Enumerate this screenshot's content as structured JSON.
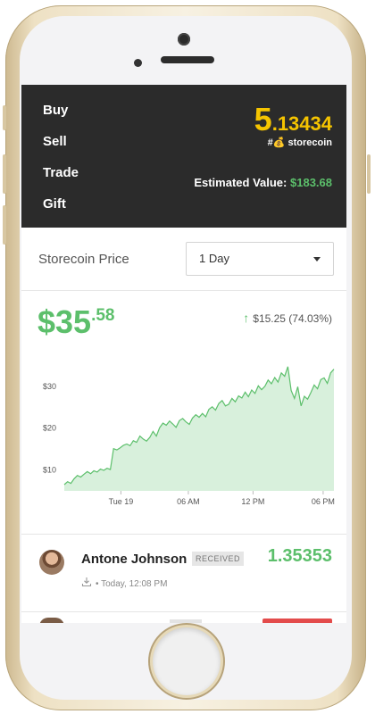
{
  "menu": [
    "Buy",
    "Sell",
    "Trade",
    "Gift"
  ],
  "balance": {
    "integer": "5",
    "decimal": ".13434",
    "label": "#💰 storecoin"
  },
  "estimated": {
    "label": "Estimated Value:",
    "value": "$183.68"
  },
  "price_section": {
    "label": "Storecoin Price",
    "range_selected": "1 Day"
  },
  "price": {
    "integer": "$35",
    "decimal": ".58",
    "change": "$15.25 (74.03%)",
    "change_icon": "arrow-up-icon"
  },
  "colors": {
    "green": "#5cbf6b",
    "gold": "#f5c400",
    "header_bg": "#2b2b2b"
  },
  "chart_data": {
    "type": "area",
    "y_ticks": [
      "$10",
      "$20",
      "$30"
    ],
    "x_ticks": [
      "Tue 19",
      "06 AM",
      "12 PM",
      "06 PM"
    ],
    "ylim": [
      5,
      37
    ],
    "values": [
      6.5,
      7.2,
      6.8,
      7.9,
      8.7,
      8.3,
      9.0,
      9.6,
      9.1,
      9.8,
      9.5,
      10.2,
      9.9,
      10.4,
      10.1,
      15.1,
      14.8,
      15.3,
      15.9,
      16.2,
      15.8,
      17.0,
      16.6,
      18.1,
      17.4,
      16.9,
      17.8,
      19.2,
      18.1,
      20.1,
      21.2,
      20.7,
      21.7,
      21.0,
      20.2,
      21.8,
      22.3,
      21.5,
      20.9,
      22.4,
      23.2,
      22.6,
      23.5,
      22.7,
      24.5,
      25.1,
      24.3,
      25.9,
      26.6,
      25.3,
      25.7,
      27.1,
      26.3,
      27.7,
      27.2,
      28.6,
      27.5,
      29.1,
      28.3,
      30.1,
      29.2,
      30.0,
      31.5,
      30.6,
      32.1,
      31.0,
      33.2,
      32.4,
      34.7,
      29.0,
      27.1,
      29.9,
      25.3,
      27.6,
      26.9,
      28.5,
      30.3,
      29.4,
      31.6,
      32.0,
      30.7,
      33.2,
      34.1
    ]
  },
  "transactions": [
    {
      "name": "Antone Johnson",
      "badge": "RECEIVED",
      "amount": "1.35353",
      "meta": "• Today, 12:08 PM"
    }
  ]
}
